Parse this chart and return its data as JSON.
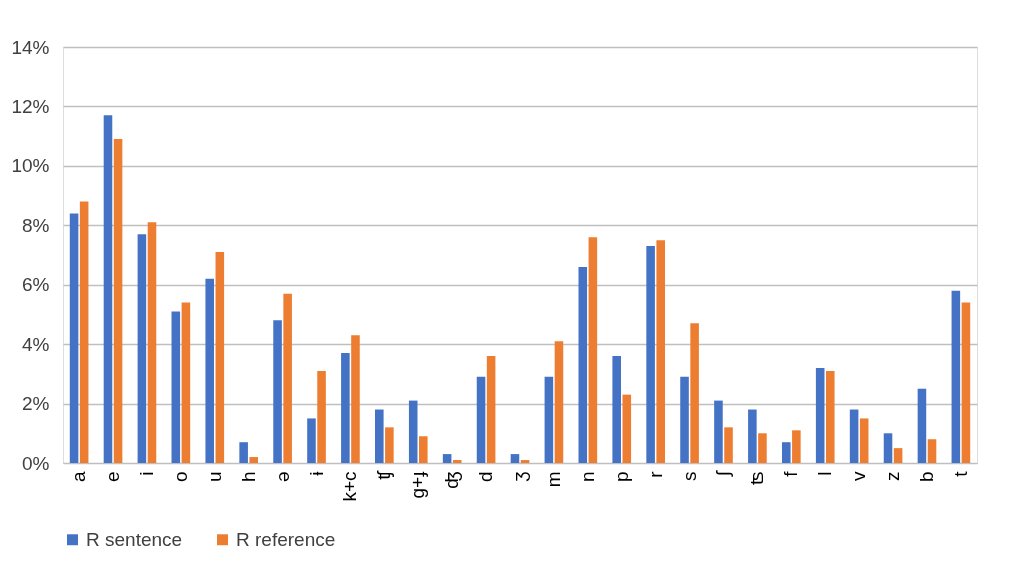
{
  "chart_data": {
    "type": "bar",
    "categories": [
      "a",
      "e",
      "i",
      "o",
      "u",
      "h",
      "ə",
      "ɨ",
      "k+c",
      "ʧ",
      "g+ɟ",
      "ʤ",
      "d",
      "ʒ",
      "m",
      "n",
      "p",
      "r",
      "s",
      "ʃ",
      "ʦ",
      "f",
      "l",
      "v",
      "z",
      "b",
      "t"
    ],
    "series": [
      {
        "name": "R sentence",
        "color": "#4472c4",
        "values": [
          8.4,
          11.7,
          7.7,
          5.1,
          6.2,
          0.7,
          4.8,
          1.5,
          3.7,
          1.8,
          2.1,
          0.3,
          2.9,
          0.3,
          2.9,
          6.6,
          3.6,
          7.3,
          2.9,
          2.1,
          1.8,
          0.7,
          3.2,
          1.8,
          1.0,
          2.5,
          5.8
        ]
      },
      {
        "name": "R reference",
        "color": "#ed7d31",
        "values": [
          8.8,
          10.9,
          8.1,
          5.4,
          7.1,
          0.2,
          5.7,
          3.1,
          4.3,
          1.2,
          0.9,
          0.1,
          3.6,
          0.1,
          4.1,
          7.6,
          2.3,
          7.5,
          4.7,
          1.2,
          1.0,
          1.1,
          3.1,
          1.5,
          0.5,
          0.8,
          5.4
        ]
      }
    ],
    "ylim": [
      0,
      14
    ],
    "yticks": [
      {
        "value": 0,
        "label": "0%"
      },
      {
        "value": 2,
        "label": "2%"
      },
      {
        "value": 4,
        "label": "4%"
      },
      {
        "value": 6,
        "label": "6%"
      },
      {
        "value": 8,
        "label": "8%"
      },
      {
        "value": 10,
        "label": "10%"
      },
      {
        "value": 12,
        "label": "12%"
      },
      {
        "value": 14,
        "label": "14%"
      }
    ],
    "grid": "y",
    "legend": "bottom"
  }
}
